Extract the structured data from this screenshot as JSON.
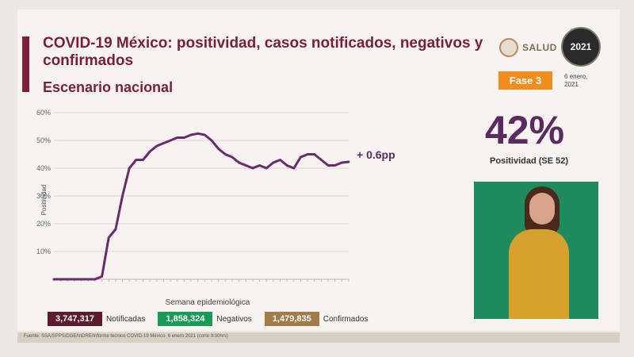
{
  "header": {
    "title": "COVID-19 México: positividad, casos notificados, negativos y confirmados",
    "subtitle": "Escenario nacional"
  },
  "branding": {
    "salud_label": "SALUD",
    "year_badge": "2021",
    "phase_label": "Fase 3",
    "date_label": "6 enero, 2021"
  },
  "kpi": {
    "value": "42%",
    "caption": "Positividad (SE 52)"
  },
  "chart_data": {
    "type": "line",
    "xlabel": "Semana epidemiológica",
    "ylabel": "Positividad",
    "ylim": [
      0,
      60
    ],
    "yticks": [
      "10%",
      "20%",
      "30%",
      "40%",
      "50%",
      "60%"
    ],
    "grid": true,
    "color": "#6b2a6b",
    "annotation": "+ 0.6pp",
    "values": [
      0,
      0,
      0,
      0,
      0,
      0,
      0,
      1,
      15,
      18,
      30,
      40,
      43,
      43,
      46,
      48,
      49,
      50,
      51,
      51,
      52,
      52.5,
      52,
      50,
      47,
      45,
      44,
      42,
      41,
      40,
      41,
      40,
      42,
      43,
      41,
      40,
      44,
      45,
      45,
      43,
      41,
      41,
      42,
      42.3
    ]
  },
  "legend": {
    "notificadas_value": "3,747,317",
    "notificadas_label": "Notificadas",
    "negativos_value": "1,858,324",
    "negativos_label": "Negativos",
    "confirmados_value": "1,479,835",
    "confirmados_label": "Confirmados"
  },
  "footer": {
    "source": "Fuente: SSA/SPPS/DGE/InDRE/Informe técnico COVID-19 México. 6 enero 2021 (corte 9:00hrs)"
  }
}
